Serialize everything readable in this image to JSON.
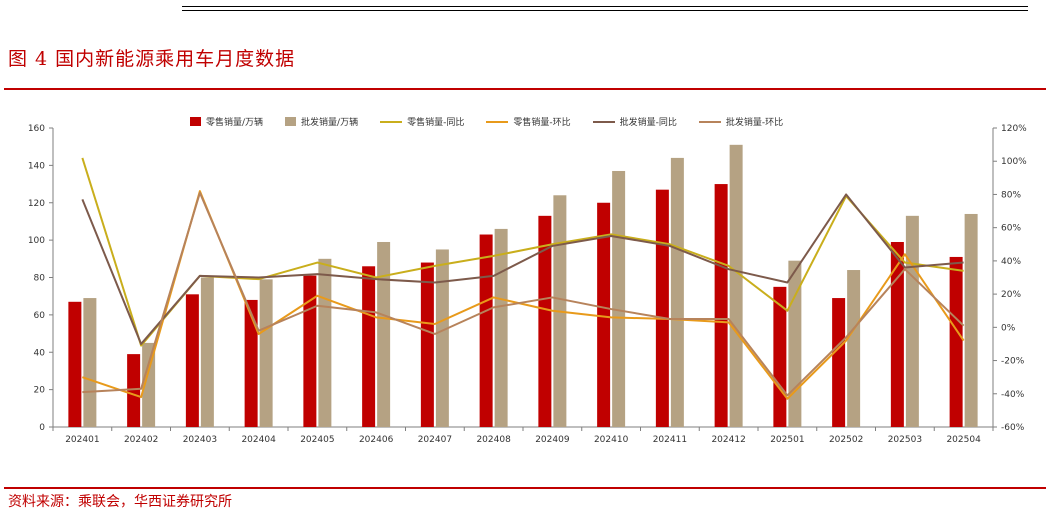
{
  "header": {
    "title": "图 4  国内新能源乘用车月度数据",
    "source": "资料来源：乘联会，华西证券研究所"
  },
  "colors": {
    "retail_bar": "#c00000",
    "wholesale_bar": "#b5a283",
    "retail_yoy": "#c9ae1c",
    "retail_mom": "#e89a1b",
    "wholesale_yoy": "#7d5a4b",
    "wholesale_mom": "#b7835b",
    "accent_red": "#c00000"
  },
  "chart_data": {
    "type": "bar",
    "categories": [
      "202401",
      "202402",
      "202403",
      "202404",
      "202405",
      "202406",
      "202407",
      "202408",
      "202409",
      "202410",
      "202411",
      "202412",
      "202501",
      "202502",
      "202503",
      "202504"
    ],
    "y_left": {
      "min": 0,
      "max": 160,
      "step": 20,
      "ticks": [
        "0",
        "20",
        "40",
        "60",
        "80",
        "100",
        "120",
        "140",
        "160"
      ]
    },
    "y_right": {
      "min": -60,
      "max": 120,
      "step": 20,
      "ticks": [
        "-60%",
        "-40%",
        "-20%",
        "0%",
        "20%",
        "40%",
        "60%",
        "80%",
        "100%",
        "120%"
      ]
    },
    "legend_position": "top",
    "grid": false,
    "bar_series": [
      {
        "name": "零售销量/万辆",
        "axis": "left",
        "values": [
          67,
          39,
          71,
          68,
          81,
          86,
          88,
          103,
          113,
          120,
          127,
          130,
          75,
          69,
          99,
          91
        ]
      },
      {
        "name": "批发销量/万辆",
        "axis": "left",
        "values": [
          69,
          45,
          80,
          79,
          90,
          99,
          95,
          106,
          124,
          137,
          144,
          151,
          89,
          84,
          113,
          114
        ]
      }
    ],
    "line_series": [
      {
        "name": "零售销量-同比",
        "axis": "right",
        "values": [
          102,
          -11,
          31,
          29,
          39,
          30,
          37,
          43,
          50,
          56,
          50,
          37,
          10,
          79,
          39,
          34
        ]
      },
      {
        "name": "零售销量-环比",
        "axis": "right",
        "values": [
          -30,
          -42,
          82,
          -4,
          19,
          6,
          2,
          18,
          10,
          6,
          5,
          3,
          -43,
          -8,
          44,
          -8
        ]
      },
      {
        "name": "批发销量-同比",
        "axis": "right",
        "values": [
          77,
          -10,
          31,
          30,
          32,
          29,
          27,
          31,
          49,
          55,
          49,
          35,
          27,
          80,
          36,
          39
        ]
      },
      {
        "name": "批发销量-环比",
        "axis": "right",
        "values": [
          -39,
          -37,
          81,
          -2,
          13,
          9,
          -4,
          12,
          18,
          11,
          5,
          5,
          -41,
          -6,
          35,
          1
        ]
      }
    ]
  }
}
